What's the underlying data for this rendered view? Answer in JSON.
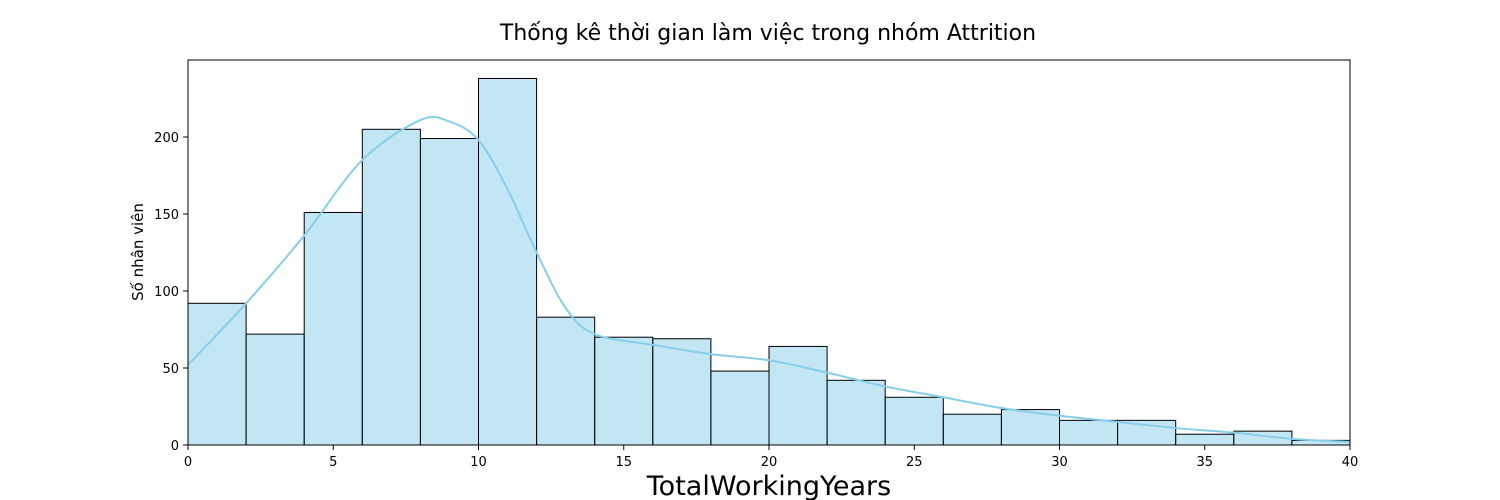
{
  "chart_data": {
    "type": "bar",
    "title": "Thống kê thời gian làm việc trong nhóm Attrition",
    "xlabel": "TotalWorkingYears",
    "ylabel": "Số nhân viên",
    "bin_width": 2,
    "bin_edges": [
      0,
      2,
      4,
      6,
      8,
      10,
      12,
      14,
      16,
      18,
      20,
      22,
      24,
      26,
      28,
      30,
      32,
      34,
      36,
      38,
      40
    ],
    "values": [
      92,
      72,
      151,
      205,
      199,
      238,
      83,
      70,
      69,
      48,
      64,
      42,
      31,
      20,
      23,
      16,
      16,
      7,
      9,
      3
    ],
    "xlim": [
      0,
      40
    ],
    "ylim": [
      0,
      250
    ],
    "xticks": [
      0,
      5,
      10,
      15,
      20,
      25,
      30,
      35,
      40
    ],
    "yticks": [
      0,
      50,
      100,
      150,
      200
    ],
    "bar_color": "#87ceeb",
    "kde_line": {
      "color": "#87ceeb",
      "points": [
        [
          0,
          52
        ],
        [
          2,
          92
        ],
        [
          4,
          136
        ],
        [
          6,
          185
        ],
        [
          8,
          211
        ],
        [
          9,
          210
        ],
        [
          10,
          198
        ],
        [
          11,
          166
        ],
        [
          12,
          125
        ],
        [
          13,
          89
        ],
        [
          14,
          72
        ],
        [
          16,
          65
        ],
        [
          18,
          59
        ],
        [
          20,
          55
        ],
        [
          22,
          47
        ],
        [
          24,
          38
        ],
        [
          26,
          31
        ],
        [
          28,
          24
        ],
        [
          30,
          19
        ],
        [
          32,
          15
        ],
        [
          34,
          11
        ],
        [
          36,
          8
        ],
        [
          38,
          4
        ],
        [
          40,
          2
        ]
      ]
    },
    "grid": false,
    "legend": "none"
  }
}
